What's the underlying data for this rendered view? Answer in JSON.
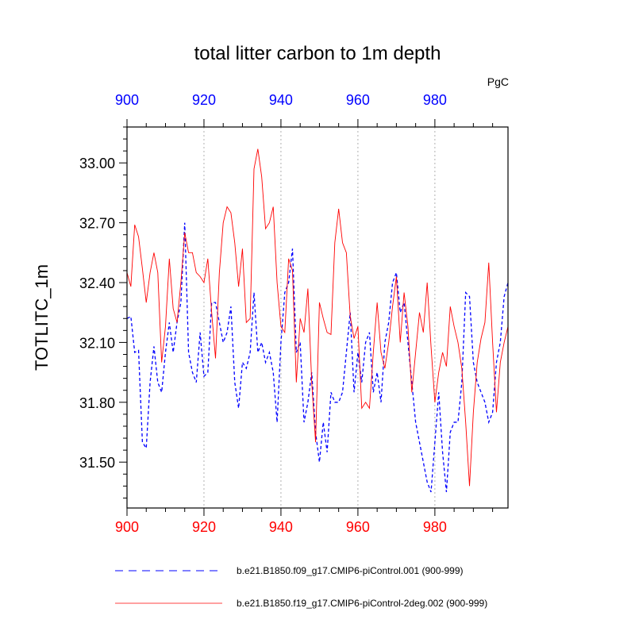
{
  "chart_data": {
    "type": "line",
    "title": "total litter carbon to 1m depth",
    "units": "PgC",
    "ylabel": "TOTLITC_1m",
    "xlabel": "",
    "xlim": [
      900,
      999
    ],
    "ylim": [
      31.27,
      33.18
    ],
    "x_ticks": [
      "900",
      "920",
      "940",
      "960",
      "980"
    ],
    "x_tick_values": [
      900,
      920,
      940,
      960,
      980
    ],
    "y_ticks": [
      "31.50",
      "31.80",
      "32.10",
      "32.40",
      "32.70",
      "33.00"
    ],
    "y_tick_values": [
      31.5,
      31.8,
      32.1,
      32.4,
      32.7,
      33.0
    ],
    "grid": "vertical dotted at major x ticks",
    "x_start": 900,
    "series": [
      {
        "name": "b.e21.B1850.f09_g17.CMIP6-piControl.001 (900-999)",
        "color": "#0000ff",
        "style": "dashed",
        "values": [
          32.22,
          32.23,
          32.05,
          32.06,
          31.6,
          31.57,
          31.9,
          32.08,
          31.9,
          31.85,
          32.05,
          32.2,
          32.05,
          32.2,
          32.3,
          32.7,
          32.05,
          31.95,
          31.9,
          32.15,
          31.93,
          31.95,
          32.3,
          32.3,
          32.2,
          32.1,
          32.15,
          32.28,
          31.9,
          31.77,
          32.0,
          31.97,
          32.05,
          32.35,
          32.05,
          32.1,
          32.0,
          32.05,
          31.95,
          31.7,
          32.1,
          32.35,
          32.4,
          32.57,
          32.05,
          32.1,
          31.7,
          31.8,
          31.95,
          31.65,
          31.5,
          31.7,
          31.55,
          31.85,
          31.8,
          31.8,
          31.85,
          32.05,
          32.25,
          31.85,
          32.05,
          31.9,
          32.1,
          32.15,
          31.85,
          31.95,
          31.8,
          32.1,
          32.2,
          32.4,
          32.45,
          32.25,
          32.3,
          32.1,
          31.9,
          31.7,
          31.6,
          31.5,
          31.4,
          31.35,
          31.6,
          31.85,
          31.55,
          31.35,
          31.65,
          31.7,
          31.7,
          31.9,
          32.35,
          32.33,
          32.0,
          31.9,
          31.85,
          31.8,
          31.7,
          31.75,
          32.0,
          32.1,
          32.33,
          32.4
        ]
      },
      {
        "name": "b.e21.B1850.f19_g17.CMIP6-piControl-2deg.002 (900-999)",
        "color": "#ff0000",
        "style": "solid",
        "values": [
          32.45,
          32.38,
          32.69,
          32.63,
          32.47,
          32.3,
          32.45,
          32.55,
          32.45,
          32.0,
          32.18,
          32.52,
          32.27,
          32.2,
          32.4,
          32.65,
          32.55,
          32.55,
          32.45,
          32.43,
          32.4,
          32.52,
          32.25,
          32.02,
          32.45,
          32.7,
          32.78,
          32.75,
          32.6,
          32.38,
          32.57,
          32.2,
          32.22,
          32.97,
          33.07,
          32.93,
          32.67,
          32.7,
          32.78,
          32.4,
          32.18,
          32.15,
          32.52,
          32.46,
          31.9,
          32.22,
          32.15,
          32.37,
          31.9,
          31.6,
          32.3,
          32.22,
          32.15,
          32.14,
          32.6,
          32.77,
          32.6,
          32.55,
          32.23,
          32.12,
          32.18,
          31.77,
          31.8,
          31.77,
          32.05,
          32.3,
          32.05,
          31.97,
          32.1,
          32.28,
          32.43,
          32.1,
          32.35,
          32.18,
          31.85,
          32.05,
          32.25,
          32.15,
          32.4,
          32.08,
          31.8,
          31.95,
          32.05,
          31.98,
          32.28,
          32.18,
          32.1,
          31.97,
          31.7,
          31.38,
          31.75,
          32.0,
          32.12,
          32.2,
          32.5,
          32.1,
          31.75,
          32.0,
          32.1,
          32.18
        ]
      }
    ]
  }
}
